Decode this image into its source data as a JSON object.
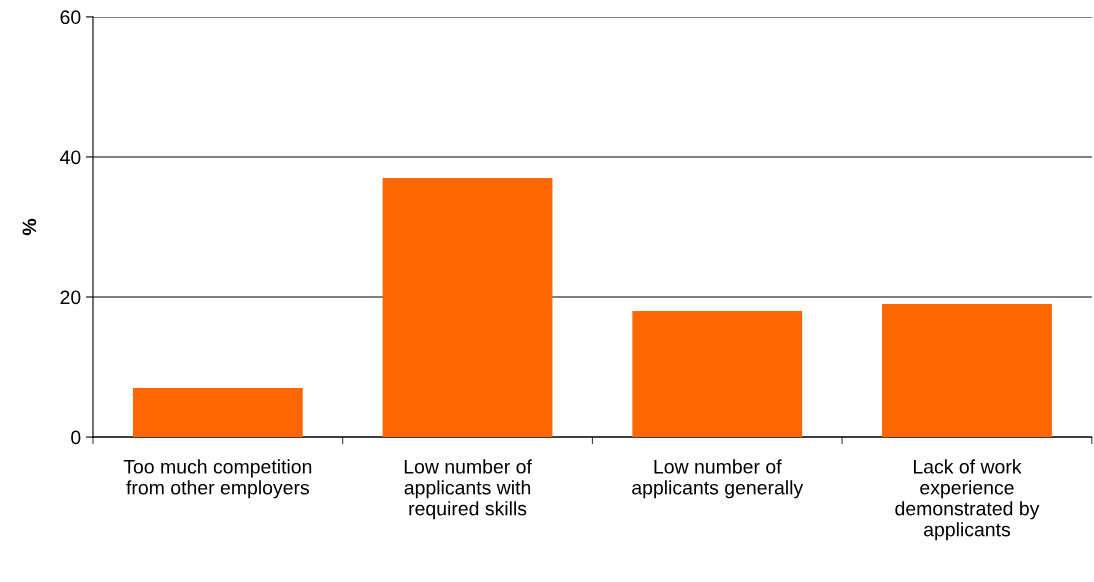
{
  "chart_data": {
    "type": "bar",
    "ylabel": "%",
    "categories": [
      "Too much competition\nfrom other employers",
      "Low number of\napplicants with\nrequired skills",
      "Low number of\napplicants generally",
      "Lack of work\nexperience\ndemonstrated by\napplicants"
    ],
    "values": [
      7,
      37,
      18,
      19
    ],
    "color": "#ff6600",
    "ylim": [
      0,
      60
    ],
    "yticks": [
      0,
      20,
      40,
      60
    ],
    "grid": "y",
    "legend": false
  }
}
